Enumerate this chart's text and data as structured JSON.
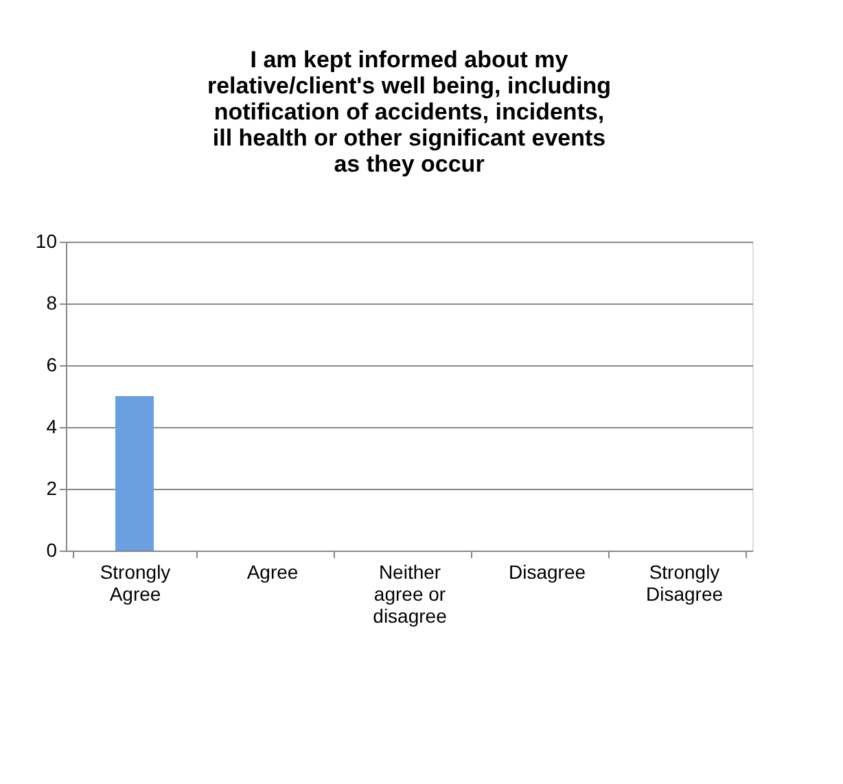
{
  "chart_data": {
    "type": "bar",
    "title": "I am kept informed about my relative/client's well being, including notification of accidents, incidents, ill health or other significant events as they occur",
    "categories": [
      "Strongly Agree",
      "Agree",
      "Neither agree or disagree",
      "Disagree",
      "Strongly Disagree"
    ],
    "values": [
      5,
      0,
      0,
      0,
      0
    ],
    "color": "#6a9fe0",
    "ylim": [
      0,
      10
    ],
    "yticks": [
      0,
      2,
      4,
      6,
      8,
      10
    ],
    "grid": "y"
  }
}
